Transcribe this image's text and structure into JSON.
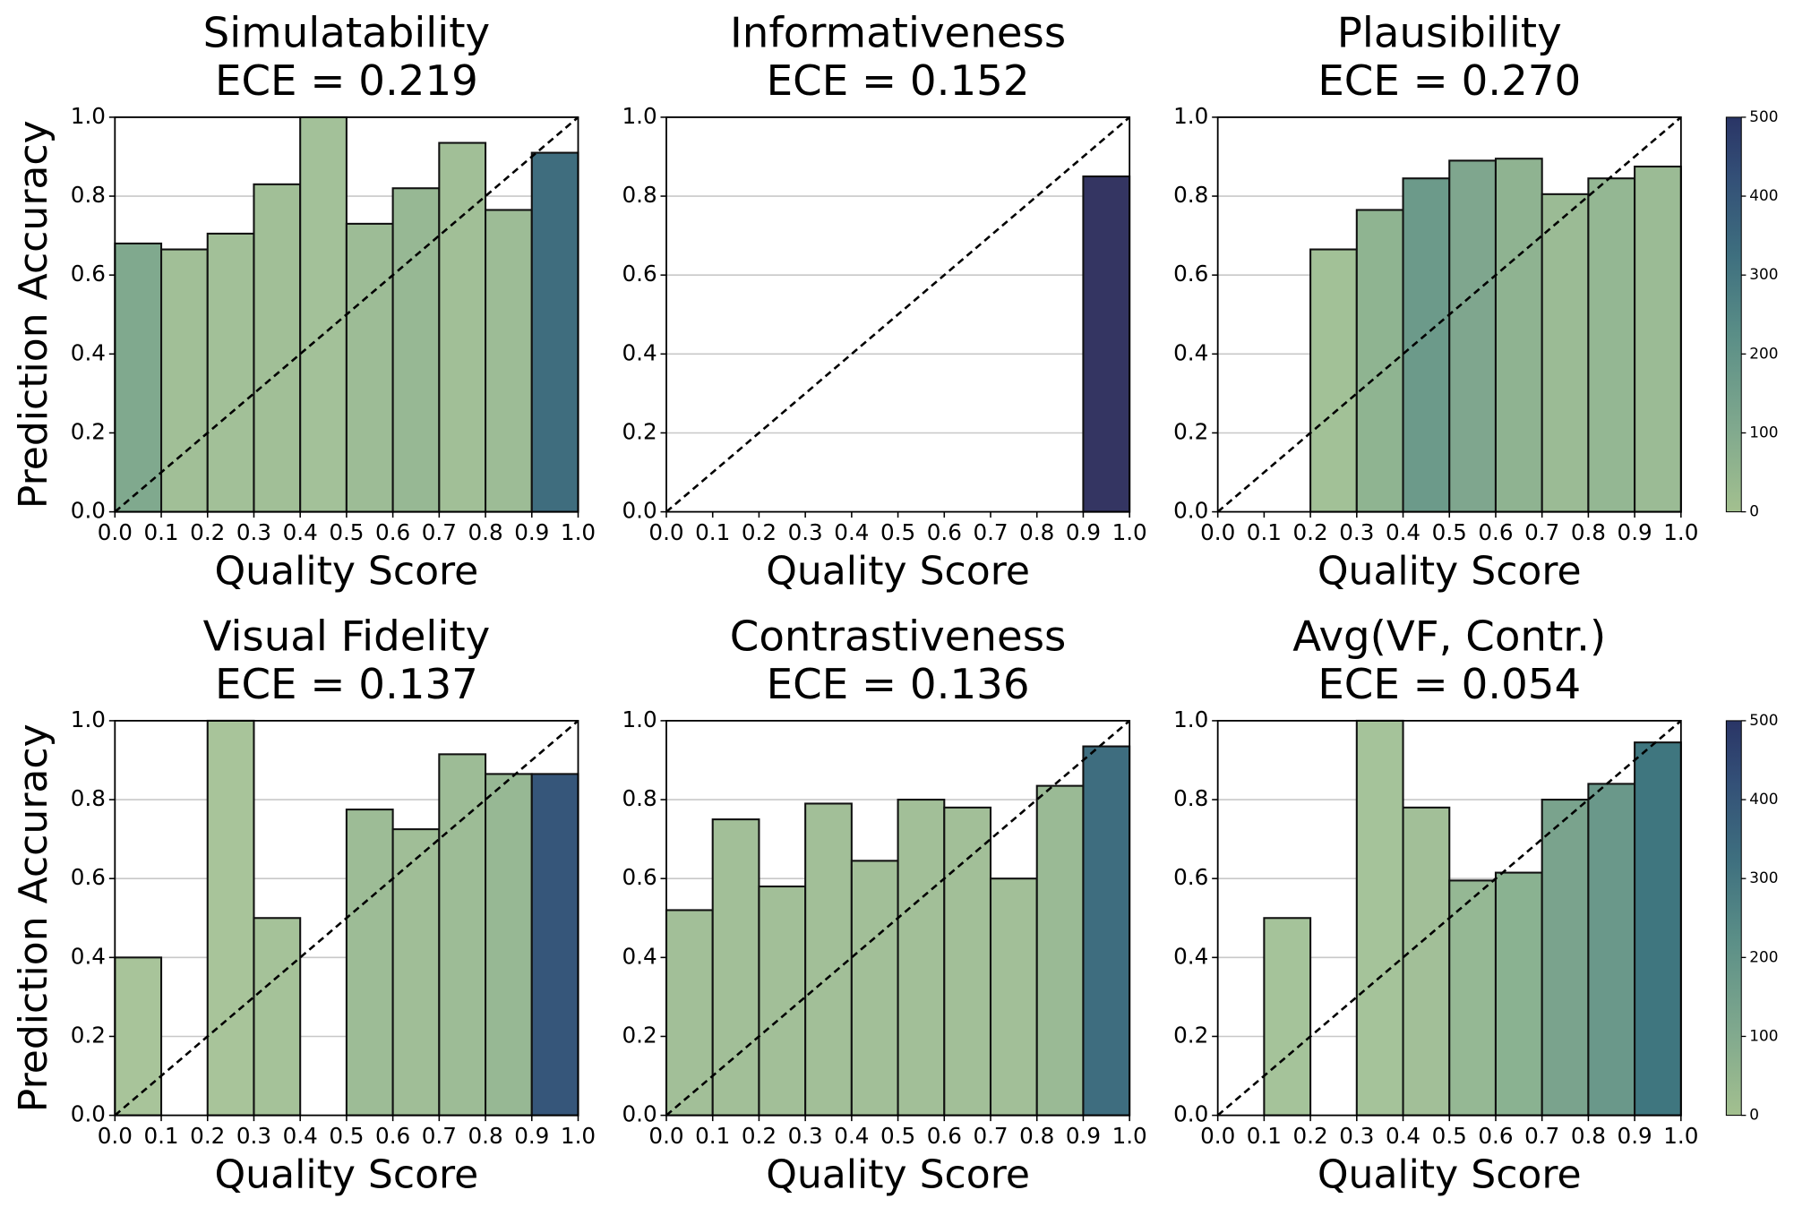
{
  "chart_data": [
    {
      "type": "histogram",
      "title": "Simulatability",
      "subtitle": "ECE = 0.219",
      "xlabel": "Quality Score",
      "ylabel": "Prediction Accuracy",
      "bins": [
        0,
        0.1,
        0.2,
        0.3,
        0.4,
        0.5,
        0.6,
        0.7,
        0.8,
        0.9,
        1.0
      ],
      "values": [
        0.68,
        0.665,
        0.705,
        0.83,
        1.0,
        0.73,
        0.82,
        0.935,
        0.765,
        0.91
      ],
      "colors": [
        "#80a98e",
        "#a1bf97",
        "#a2c098",
        "#a1bf97",
        "#a3c199",
        "#9dbc96",
        "#97b894",
        "#a1bf97",
        "#9dbc96",
        "#3f6d7e"
      ],
      "xlim": [
        0,
        1
      ],
      "ylim": [
        0,
        1
      ],
      "grid": true,
      "xticks": [
        {
          "value": 0,
          "label": "0.0"
        },
        {
          "value": 0.1,
          "label": "0.1"
        },
        {
          "value": 0.2,
          "label": "0.2"
        },
        {
          "value": 0.3,
          "label": "0.3"
        },
        {
          "value": 0.4,
          "label": "0.4"
        },
        {
          "value": 0.5,
          "label": "0.5"
        },
        {
          "value": 0.6,
          "label": "0.6"
        },
        {
          "value": 0.7,
          "label": "0.7"
        },
        {
          "value": 0.8,
          "label": "0.8"
        },
        {
          "value": 0.9,
          "label": "0.9"
        },
        {
          "value": 1,
          "label": "1.0"
        }
      ],
      "yticks": [
        {
          "value": 0,
          "label": "0.0"
        },
        {
          "value": 0.2,
          "label": "0.2"
        },
        {
          "value": 0.4,
          "label": "0.4"
        },
        {
          "value": 0.6,
          "label": "0.6"
        },
        {
          "value": 0.8,
          "label": "0.8"
        },
        {
          "value": 1,
          "label": "1.0"
        }
      ]
    },
    {
      "type": "histogram",
      "title": "Informativeness",
      "subtitle": "ECE = 0.152",
      "xlabel": "Quality Score",
      "bins": [
        0,
        0.1,
        0.2,
        0.3,
        0.4,
        0.5,
        0.6,
        0.7,
        0.8,
        0.9,
        1.0
      ],
      "values": [
        null,
        null,
        null,
        null,
        null,
        null,
        null,
        null,
        null,
        0.85
      ],
      "colors": [
        null,
        null,
        null,
        null,
        null,
        null,
        null,
        null,
        null,
        "#343562"
      ],
      "xlim": [
        0,
        1
      ],
      "ylim": [
        0,
        1
      ],
      "grid": true,
      "xticks": [
        {
          "value": 0,
          "label": "0.0"
        },
        {
          "value": 0.1,
          "label": "0.1"
        },
        {
          "value": 0.2,
          "label": "0.2"
        },
        {
          "value": 0.3,
          "label": "0.3"
        },
        {
          "value": 0.4,
          "label": "0.4"
        },
        {
          "value": 0.5,
          "label": "0.5"
        },
        {
          "value": 0.6,
          "label": "0.6"
        },
        {
          "value": 0.7,
          "label": "0.7"
        },
        {
          "value": 0.8,
          "label": "0.8"
        },
        {
          "value": 0.9,
          "label": "0.9"
        },
        {
          "value": 1,
          "label": "1.0"
        }
      ],
      "yticks": [
        {
          "value": 0,
          "label": "0.0"
        },
        {
          "value": 0.2,
          "label": "0.2"
        },
        {
          "value": 0.4,
          "label": "0.4"
        },
        {
          "value": 0.6,
          "label": "0.6"
        },
        {
          "value": 0.8,
          "label": "0.8"
        },
        {
          "value": 1,
          "label": "1.0"
        }
      ]
    },
    {
      "type": "histogram",
      "title": "Plausibility",
      "subtitle": "ECE = 0.270",
      "xlabel": "Quality Score",
      "bins": [
        0,
        0.1,
        0.2,
        0.3,
        0.4,
        0.5,
        0.6,
        0.7,
        0.8,
        0.9,
        1.0
      ],
      "values": [
        null,
        null,
        0.665,
        0.765,
        0.845,
        0.89,
        0.895,
        0.805,
        0.845,
        0.875
      ],
      "colors": [
        null,
        null,
        "#a2c197",
        "#8fb491",
        "#6c9a8a",
        "#7fa68e",
        "#8fb391",
        "#9bbb95",
        "#94b793",
        "#9bbb95"
      ],
      "xlim": [
        0,
        1
      ],
      "ylim": [
        0,
        1
      ],
      "grid": true,
      "xticks": [
        {
          "value": 0,
          "label": "0.0"
        },
        {
          "value": 0.1,
          "label": "0.1"
        },
        {
          "value": 0.2,
          "label": "0.2"
        },
        {
          "value": 0.3,
          "label": "0.3"
        },
        {
          "value": 0.4,
          "label": "0.4"
        },
        {
          "value": 0.5,
          "label": "0.5"
        },
        {
          "value": 0.6,
          "label": "0.6"
        },
        {
          "value": 0.7,
          "label": "0.7"
        },
        {
          "value": 0.8,
          "label": "0.8"
        },
        {
          "value": 0.9,
          "label": "0.9"
        },
        {
          "value": 1,
          "label": "1.0"
        }
      ],
      "yticks": [
        {
          "value": 0,
          "label": "0.0"
        },
        {
          "value": 0.2,
          "label": "0.2"
        },
        {
          "value": 0.4,
          "label": "0.4"
        },
        {
          "value": 0.6,
          "label": "0.6"
        },
        {
          "value": 0.8,
          "label": "0.8"
        },
        {
          "value": 1,
          "label": "1.0"
        }
      ],
      "colorbar": {
        "lim": [
          0,
          500
        ],
        "ticks": [
          0,
          100,
          200,
          300,
          400,
          500
        ]
      }
    },
    {
      "type": "histogram",
      "title": "Visual Fidelity",
      "subtitle": "ECE = 0.137",
      "xlabel": "Quality Score",
      "ylabel": "Prediction Accuracy",
      "bins": [
        0,
        0.1,
        0.2,
        0.3,
        0.4,
        0.5,
        0.6,
        0.7,
        0.8,
        0.9,
        1.0
      ],
      "values": [
        0.4,
        null,
        1.0,
        0.5,
        null,
        0.775,
        0.725,
        0.915,
        0.865,
        0.865
      ],
      "colors": [
        "#a8c49a",
        null,
        "#a8c49a",
        "#a5c299",
        null,
        "#9dbc96",
        "#a0be97",
        "#9dbc96",
        "#97b894",
        "#36567a"
      ],
      "xlim": [
        0,
        1
      ],
      "ylim": [
        0,
        1
      ],
      "grid": true,
      "xticks": [
        {
          "value": 0,
          "label": "0.0"
        },
        {
          "value": 0.1,
          "label": "0.1"
        },
        {
          "value": 0.2,
          "label": "0.2"
        },
        {
          "value": 0.3,
          "label": "0.3"
        },
        {
          "value": 0.4,
          "label": "0.4"
        },
        {
          "value": 0.5,
          "label": "0.5"
        },
        {
          "value": 0.6,
          "label": "0.6"
        },
        {
          "value": 0.7,
          "label": "0.7"
        },
        {
          "value": 0.8,
          "label": "0.8"
        },
        {
          "value": 0.9,
          "label": "0.9"
        },
        {
          "value": 1,
          "label": "1.0"
        }
      ],
      "yticks": [
        {
          "value": 0,
          "label": "0.0"
        },
        {
          "value": 0.2,
          "label": "0.2"
        },
        {
          "value": 0.4,
          "label": "0.4"
        },
        {
          "value": 0.6,
          "label": "0.6"
        },
        {
          "value": 0.8,
          "label": "0.8"
        },
        {
          "value": 1,
          "label": "1.0"
        }
      ]
    },
    {
      "type": "histogram",
      "title": "Contrastiveness",
      "subtitle": "ECE = 0.136",
      "xlabel": "Quality Score",
      "bins": [
        0,
        0.1,
        0.2,
        0.3,
        0.4,
        0.5,
        0.6,
        0.7,
        0.8,
        0.9,
        1.0
      ],
      "values": [
        0.52,
        0.75,
        0.58,
        0.79,
        0.645,
        0.8,
        0.78,
        0.6,
        0.835,
        0.935
      ],
      "colors": [
        "#a2bf98",
        "#a2bf98",
        "#a2bf98",
        "#a2bf98",
        "#a2bf98",
        "#a2bf98",
        "#a2bf98",
        "#a2bf98",
        "#9aba95",
        "#3e6d7f"
      ],
      "xlim": [
        0,
        1
      ],
      "ylim": [
        0,
        1
      ],
      "grid": true,
      "xticks": [
        {
          "value": 0,
          "label": "0.0"
        },
        {
          "value": 0.1,
          "label": "0.1"
        },
        {
          "value": 0.2,
          "label": "0.2"
        },
        {
          "value": 0.3,
          "label": "0.3"
        },
        {
          "value": 0.4,
          "label": "0.4"
        },
        {
          "value": 0.5,
          "label": "0.5"
        },
        {
          "value": 0.6,
          "label": "0.6"
        },
        {
          "value": 0.7,
          "label": "0.7"
        },
        {
          "value": 0.8,
          "label": "0.8"
        },
        {
          "value": 0.9,
          "label": "0.9"
        },
        {
          "value": 1,
          "label": "1.0"
        }
      ],
      "yticks": [
        {
          "value": 0,
          "label": "0.0"
        },
        {
          "value": 0.2,
          "label": "0.2"
        },
        {
          "value": 0.4,
          "label": "0.4"
        },
        {
          "value": 0.6,
          "label": "0.6"
        },
        {
          "value": 0.8,
          "label": "0.8"
        },
        {
          "value": 1,
          "label": "1.0"
        }
      ]
    },
    {
      "type": "histogram",
      "title": "Avg(VF, Contr.)",
      "subtitle": "ECE = 0.054",
      "xlabel": "Quality Score",
      "bins": [
        0,
        0.1,
        0.2,
        0.3,
        0.4,
        0.5,
        0.6,
        0.7,
        0.8,
        0.9,
        1.0
      ],
      "values": [
        null,
        0.5,
        null,
        1.0,
        0.78,
        0.595,
        0.615,
        0.8,
        0.84,
        0.945
      ],
      "colors": [
        null,
        "#a5c39a",
        null,
        "#a5c39a",
        "#a2bf98",
        "#95b894",
        "#8ab291",
        "#7aa38d",
        "#6a988a",
        "#3f767f"
      ],
      "xlim": [
        0,
        1
      ],
      "ylim": [
        0,
        1
      ],
      "grid": true,
      "xticks": [
        {
          "value": 0,
          "label": "0.0"
        },
        {
          "value": 0.1,
          "label": "0.1"
        },
        {
          "value": 0.2,
          "label": "0.2"
        },
        {
          "value": 0.3,
          "label": "0.3"
        },
        {
          "value": 0.4,
          "label": "0.4"
        },
        {
          "value": 0.5,
          "label": "0.5"
        },
        {
          "value": 0.6,
          "label": "0.6"
        },
        {
          "value": 0.7,
          "label": "0.7"
        },
        {
          "value": 0.8,
          "label": "0.8"
        },
        {
          "value": 0.9,
          "label": "0.9"
        },
        {
          "value": 1,
          "label": "1.0"
        }
      ],
      "yticks": [
        {
          "value": 0,
          "label": "0.0"
        },
        {
          "value": 0.2,
          "label": "0.2"
        },
        {
          "value": 0.4,
          "label": "0.4"
        },
        {
          "value": 0.6,
          "label": "0.6"
        },
        {
          "value": 0.8,
          "label": "0.8"
        },
        {
          "value": 1,
          "label": "1.0"
        }
      ],
      "colorbar": {
        "lim": [
          0,
          500
        ],
        "ticks": [
          0,
          100,
          200,
          300,
          400,
          500
        ]
      }
    }
  ]
}
